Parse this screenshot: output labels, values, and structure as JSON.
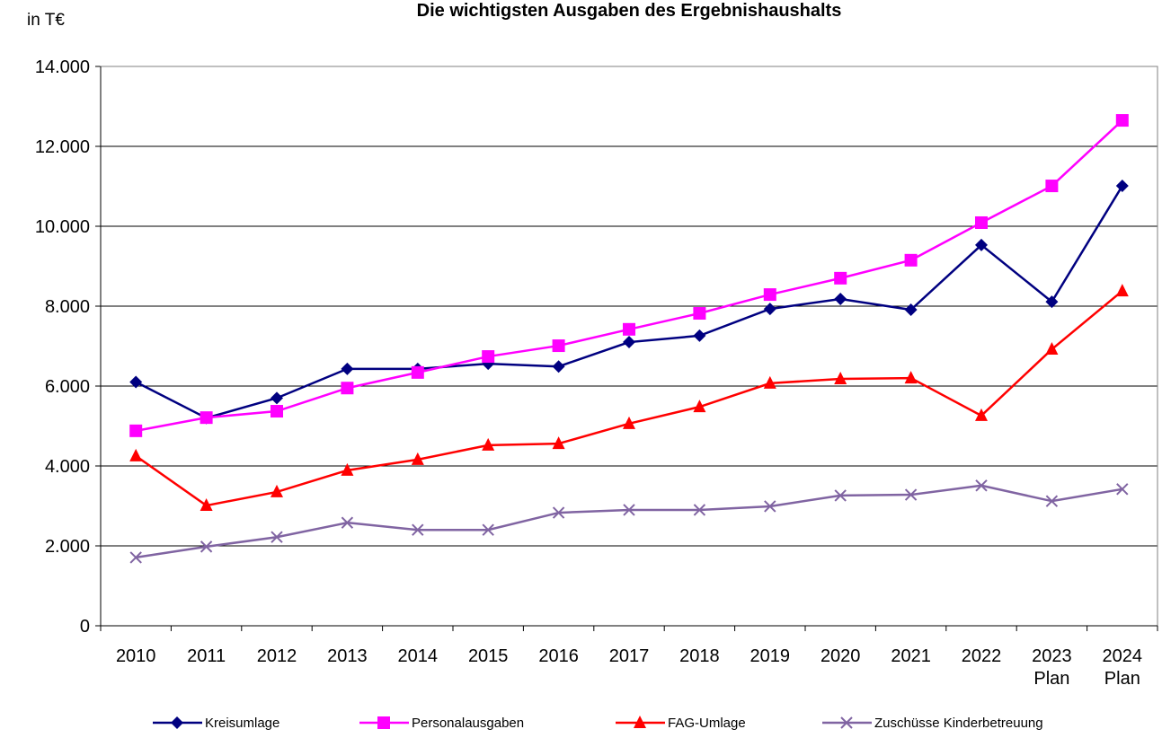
{
  "chart_data": {
    "type": "line",
    "title": "Die wichtigsten Ausgaben des Ergebnishaushalts",
    "y_label": "in T€",
    "categories": [
      "2010",
      "2011",
      "2012",
      "2013",
      "2014",
      "2015",
      "2016",
      "2017",
      "2018",
      "2019",
      "2020",
      "2021",
      "2022",
      "2023\nPlan",
      "2024\nPlan"
    ],
    "series": [
      {
        "name": "Kreisumlage",
        "color": "#000080",
        "marker": "diamond",
        "values": [
          6100,
          5200,
          5700,
          6430,
          6430,
          6560,
          6490,
          7100,
          7260,
          7930,
          8180,
          7910,
          9530,
          8110,
          11010
        ]
      },
      {
        "name": "Personalausgaben",
        "color": "#ff00ff",
        "marker": "square",
        "values": [
          4880,
          5210,
          5370,
          5950,
          6340,
          6740,
          7010,
          7420,
          7820,
          8290,
          8700,
          9150,
          10090,
          11010,
          12650
        ]
      },
      {
        "name": "FAG-Umlage",
        "color": "#ff0000",
        "marker": "triangle",
        "values": [
          4250,
          3010,
          3350,
          3890,
          4160,
          4520,
          4560,
          5060,
          5480,
          6070,
          6180,
          6200,
          5260,
          6920,
          8380
        ]
      },
      {
        "name": "Zuschüsse Kinderbetreuung",
        "color": "#8064a2",
        "marker": "x",
        "values": [
          1710,
          1980,
          2220,
          2580,
          2400,
          2400,
          2830,
          2900,
          2900,
          2990,
          3260,
          3280,
          3510,
          3120,
          3420
        ]
      }
    ],
    "ylim": [
      0,
      14000
    ],
    "yticks": [
      0,
      {
        "value": 2000,
        "label": "2.000"
      },
      {
        "value": 4000,
        "label": "4.000"
      },
      {
        "value": 6000,
        "label": "6.000"
      },
      {
        "value": 8000,
        "label": "8.000"
      },
      {
        "value": 10000,
        "label": "10.000"
      },
      {
        "value": 12000,
        "label": "12.000"
      },
      {
        "value": 14000,
        "label": "14.000"
      }
    ],
    "grid": true,
    "legend": "bottom"
  }
}
